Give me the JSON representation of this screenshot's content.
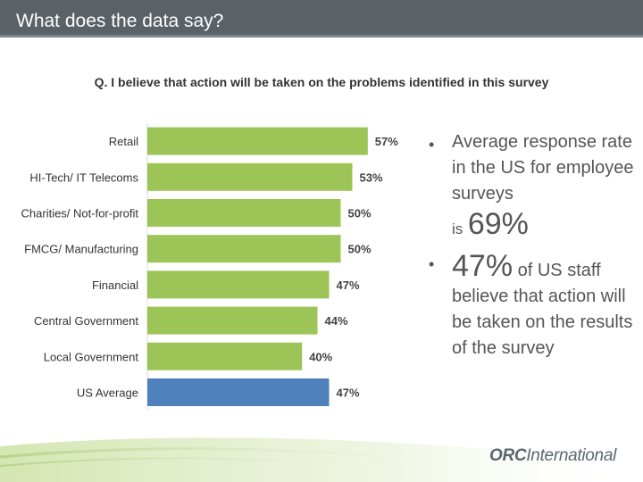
{
  "header": {
    "title": "What does the data say?"
  },
  "question": "Q. I believe that action will be taken on the problems identified in this survey",
  "chart_data": {
    "type": "bar",
    "orientation": "horizontal",
    "categories": [
      "Retail",
      "HI-Tech/ IT Telecoms",
      "Charities/ Not-for-profit",
      "FMCG/ Manufacturing",
      "Financial",
      "Central Government",
      "Local Government",
      "US Average"
    ],
    "values": [
      57,
      53,
      50,
      50,
      47,
      44,
      40,
      47
    ],
    "data_labels": [
      "57%",
      "53%",
      "50%",
      "50%",
      "47%",
      "44%",
      "40%",
      "47%"
    ],
    "xlim": [
      0,
      100
    ],
    "grid": false,
    "colors": {
      "default": "#9cc456",
      "highlight": "#4f81bd"
    },
    "highlight_index": 7
  },
  "bullets": {
    "b1_text": "Average response rate in the US for employee surveys",
    "b1_prefix": "is",
    "b1_value": "69%",
    "b2_value": "47%",
    "b2_text_start": "of US staff",
    "b2_text_rest": "believe that action will be taken on the results of the survey"
  },
  "logo": {
    "orc": "ORC",
    "international": "International"
  }
}
